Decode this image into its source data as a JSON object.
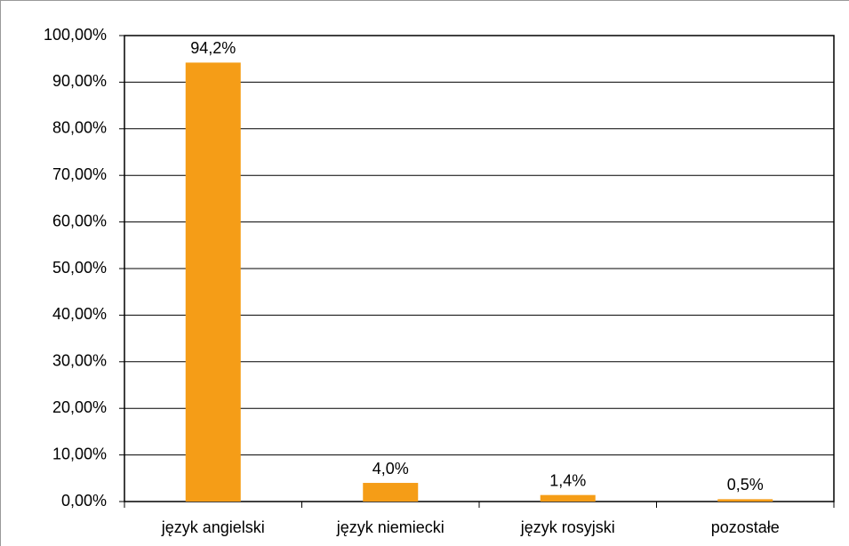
{
  "chart_data": {
    "type": "bar",
    "categories": [
      "język angielski",
      "język niemiecki",
      "język rosyjski",
      "pozostałe"
    ],
    "values": [
      94.2,
      4.0,
      1.4,
      0.5
    ],
    "value_labels": [
      "94,2%",
      "4,0%",
      "1,4%",
      "0,5%"
    ],
    "color": "#f59d17",
    "ylim": [
      0,
      100
    ],
    "yticks": [
      {
        "value": 0,
        "label": "0,00%"
      },
      {
        "value": 10,
        "label": "10,00%"
      },
      {
        "value": 20,
        "label": "20,00%"
      },
      {
        "value": 30,
        "label": "30,00%"
      },
      {
        "value": 40,
        "label": "40,00%"
      },
      {
        "value": 50,
        "label": "50,00%"
      },
      {
        "value": 60,
        "label": "60,00%"
      },
      {
        "value": 70,
        "label": "70,00%"
      },
      {
        "value": 80,
        "label": "80,00%"
      },
      {
        "value": 90,
        "label": "90,00%"
      },
      {
        "value": 100,
        "label": "100,00%"
      }
    ],
    "grid": true
  }
}
